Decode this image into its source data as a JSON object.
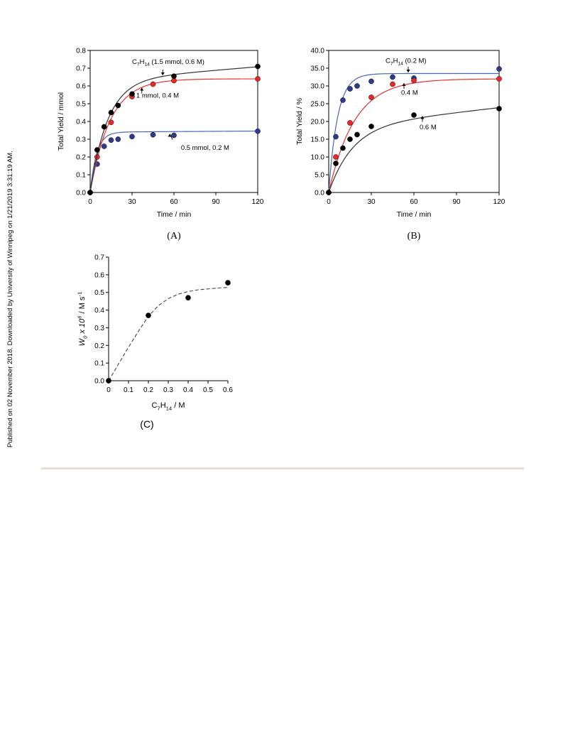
{
  "side_note": "Published on 02 November 2018. Downloaded by University of Winnipeg on 1/21/2019 3:31:19 AM.",
  "colors": {
    "black": "#000000",
    "red": "#e8282a",
    "blue": "#2e3a8c",
    "curve_blue": "#4a68b8",
    "curve_black": "#333333",
    "curve_red": "#e83030",
    "divider": "#e6dfd3"
  },
  "chart_data": [
    {
      "id": "A",
      "type": "scatter",
      "caption": "(A)",
      "xlabel": "Time / min",
      "ylabel": "Total Yield / mmol",
      "xlim": [
        0,
        120
      ],
      "ylim": [
        0,
        0.8
      ],
      "xticks": [
        0,
        30,
        60,
        90,
        120
      ],
      "xtick_labels": [
        "0",
        "30",
        "60",
        "90",
        "120"
      ],
      "yticks": [
        0,
        0.1,
        0.2,
        0.3,
        0.4,
        0.5,
        0.6,
        0.7,
        0.8
      ],
      "ytick_labels": [
        "0.0",
        "0.1",
        "0.2",
        "0.3",
        "0.4",
        "0.5",
        "0.6",
        "0.7",
        "0.8"
      ],
      "series": [
        {
          "color": "#2e3a8c",
          "curve_color": "#4a68b8",
          "label": "0.5 mmol, 0.2 M",
          "x": [
            0,
            5,
            10,
            15,
            20,
            30,
            45,
            60,
            120
          ],
          "y": [
            0.0,
            0.16,
            0.26,
            0.295,
            0.3,
            0.315,
            0.325,
            0.322,
            0.345
          ],
          "fit": {
            "a": 0.34,
            "k": 0.22,
            "b": 5e-05
          },
          "label_pos": [
            65,
            0.24
          ],
          "arrow_tip": [
            57,
            0.33
          ]
        },
        {
          "color": "#e8282a",
          "curve_color": "#e83030",
          "label": "1 mmol, 0.4 M",
          "x": [
            0,
            5,
            15,
            30,
            45,
            60,
            120
          ],
          "y": [
            0.0,
            0.2,
            0.395,
            0.54,
            0.61,
            0.63,
            0.64
          ],
          "fit": {
            "a": 0.64,
            "k": 0.07,
            "b": 0.0
          },
          "label_pos": [
            33,
            0.535
          ],
          "arrow_tip": [
            37,
            0.59
          ]
        },
        {
          "color": "#000000",
          "curve_color": "#333333",
          "label_main": "C",
          "label_sub1": "7",
          "label_mid": "H",
          "label_sub2": "14",
          "label_tail": " (1.5 mmol, 0.6 M)",
          "x": [
            0,
            5,
            10,
            15,
            20,
            30,
            60,
            120
          ],
          "y": [
            0.0,
            0.24,
            0.37,
            0.45,
            0.49,
            0.555,
            0.655,
            0.71
          ],
          "fit": {
            "a": 0.63,
            "k": 0.08,
            "b": 0.00065
          },
          "label_pos": [
            30,
            0.725
          ],
          "arrow_tip": [
            52,
            0.66
          ]
        }
      ]
    },
    {
      "id": "B",
      "type": "scatter",
      "caption": "(B)",
      "xlabel": "Time / min",
      "ylabel": "Total Yield / %",
      "xlim": [
        0,
        120
      ],
      "ylim": [
        0,
        40
      ],
      "xticks": [
        0,
        30,
        60,
        90,
        120
      ],
      "xtick_labels": [
        "0",
        "30",
        "60",
        "90",
        "120"
      ],
      "yticks": [
        0,
        5,
        10,
        15,
        20,
        25,
        30,
        35,
        40
      ],
      "ytick_labels": [
        "0.0",
        "5.0",
        "10.0",
        "15.0",
        "20.0",
        "25.0",
        "30.0",
        "35.0",
        "40.0"
      ],
      "series": [
        {
          "color": "#2e3a8c",
          "curve_color": "#4a68b8",
          "label_main": "C",
          "label_sub1": "7",
          "label_mid": "H",
          "label_sub2": "14",
          "label_tail": " (0.2 M)",
          "x": [
            0,
            5,
            10,
            15,
            20,
            30,
            45,
            60,
            120
          ],
          "y": [
            0,
            15.7,
            26.0,
            29.2,
            30.0,
            31.3,
            32.5,
            32.2,
            34.8
          ],
          "fit": {
            "a": 33.5,
            "k": 0.16,
            "b": 0.0
          },
          "label_pos": [
            40,
            36.5
          ],
          "arrow_tip": [
            56,
            33.8
          ]
        },
        {
          "color": "#e8282a",
          "curve_color": "#e83030",
          "label": "0.4 M",
          "x": [
            0,
            5,
            15,
            30,
            45,
            60,
            120
          ],
          "y": [
            0,
            10.0,
            19.6,
            26.8,
            30.5,
            31.5,
            32.0
          ],
          "fit": {
            "a": 32.0,
            "k": 0.055,
            "b": 0.0
          },
          "label_pos": [
            51,
            27.5
          ],
          "arrow_tip": [
            53,
            30.8
          ]
        },
        {
          "color": "#000000",
          "curve_color": "#333333",
          "label": "0.6 M",
          "x": [
            0,
            5,
            10,
            15,
            20,
            30,
            60,
            120
          ],
          "y": [
            0,
            8.2,
            12.5,
            15.0,
            16.3,
            18.6,
            21.8,
            23.6
          ],
          "fit": {
            "a": 18.5,
            "k": 0.06,
            "b": 0.045
          },
          "label_pos": [
            64,
            17.8
          ],
          "arrow_tip": [
            66,
            21.5
          ]
        }
      ]
    },
    {
      "id": "C",
      "type": "scatter",
      "caption": "(C)",
      "xlabel_main": "C",
      "xlabel_sub1": "7",
      "xlabel_mid": "H",
      "xlabel_sub2": "14",
      "xlabel_tail": " / M",
      "ylabel_w": "W",
      "ylabel_sub": "0",
      "ylabel_x": " x 10",
      "ylabel_sup": "6",
      "ylabel_unit": " / M s",
      "ylabel_sup2": "-1",
      "xlim": [
        0,
        0.6
      ],
      "ylim": [
        0,
        0.7
      ],
      "xticks": [
        0,
        0.1,
        0.2,
        0.3,
        0.4,
        0.5,
        0.6
      ],
      "xtick_labels": [
        "0",
        "0.1",
        "0.2",
        "0.3",
        "0.4",
        "0.5",
        "0.6"
      ],
      "yticks": [
        0,
        0.1,
        0.2,
        0.3,
        0.4,
        0.5,
        0.6,
        0.7
      ],
      "ytick_labels": [
        "0.0",
        "0.1",
        "0.2",
        "0.3",
        "0.4",
        "0.5",
        "0.6",
        "0.7"
      ],
      "series": [
        {
          "color": "#000000",
          "x": [
            0,
            0.2,
            0.4,
            0.6
          ],
          "y": [
            0.0,
            0.37,
            0.47,
            0.555
          ]
        }
      ],
      "trend": {
        "x": [
          0,
          0.05,
          0.1,
          0.15,
          0.2,
          0.25,
          0.3,
          0.35,
          0.4,
          0.45,
          0.5,
          0.55,
          0.6
        ],
        "y": [
          0,
          0.095,
          0.19,
          0.28,
          0.365,
          0.425,
          0.465,
          0.49,
          0.505,
          0.515,
          0.52,
          0.525,
          0.528
        ]
      }
    }
  ]
}
